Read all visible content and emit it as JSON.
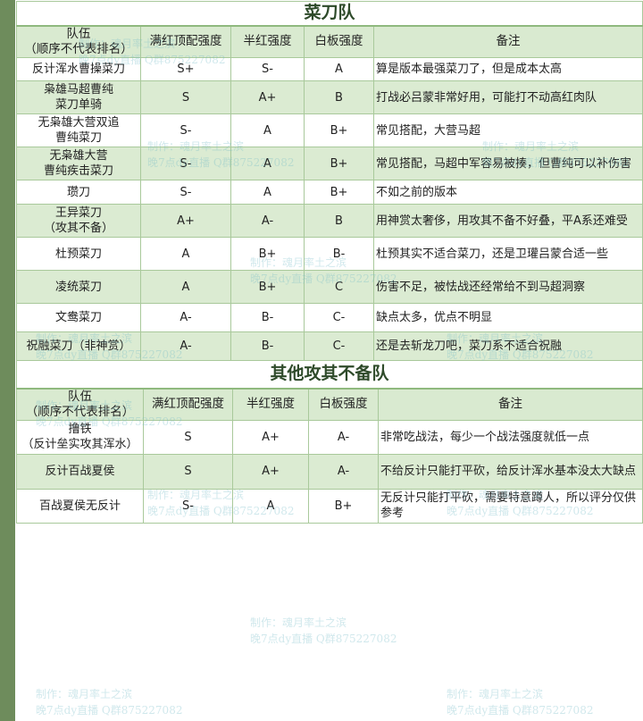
{
  "tables": [
    {
      "title": "菜刀队",
      "headers": [
        "队伍\n（顺序不代表排名）",
        "满红顶配强度",
        "半红强度",
        "白板强度",
        "备注"
      ],
      "rows": [
        [
          "反计浑水曹操菜刀",
          "S+",
          "S-",
          "A",
          "算是版本最强菜刀了，但是成本太高"
        ],
        [
          "枭雄马超曹纯\n菜刀单骑",
          "S",
          "A+",
          "B",
          "打战必吕蒙非常好用，可能打不动高红肉队"
        ],
        [
          "无枭雄大营双追\n曹纯菜刀",
          "S-",
          "A",
          "B+",
          "常见搭配，大营马超"
        ],
        [
          "无枭雄大营\n曹纯疾击菜刀",
          "S-",
          "A",
          "B+",
          "常见搭配，马超中军容易被揍，但曹纯可以补伤害"
        ],
        [
          "瓒刀",
          "S-",
          "A",
          "B+",
          "不如之前的版本"
        ],
        [
          "王异菜刀\n（攻其不备）",
          "A+",
          "A-",
          "B",
          "用神赏太奢侈，用攻其不备不好叠，平A系还难受"
        ],
        [
          "杜预菜刀",
          "A",
          "B+",
          "B-",
          "杜预其实不适合菜刀，还是卫瓘吕蒙合适一些"
        ],
        [
          "凌统菜刀",
          "A",
          "B+",
          "C",
          "伤害不足，被怯战还经常给不到马超洞察"
        ],
        [
          "文鸯菜刀",
          "A-",
          "B-",
          "C-",
          "缺点太多，优点不明显"
        ],
        [
          "祝融菜刀（非神赏）",
          "A-",
          "B-",
          "C-",
          "还是去斩龙刀吧，菜刀系不适合祝融"
        ]
      ]
    },
    {
      "title": "其他攻其不备队",
      "headers": [
        "队伍\n（顺序不代表排名）",
        "满红顶配强度",
        "半红强度",
        "白板强度",
        "备注"
      ],
      "rows": [
        [
          "撸铁\n（反计垒实攻其浑水）",
          "S",
          "A+",
          "A-",
          "非常吃战法，每少一个战法强度就低一点"
        ],
        [
          "反计百战夏侯",
          "S",
          "A+",
          "A-",
          "不给反计只能打平砍，给反计浑水基本没太大缺点"
        ],
        [
          "百战夏侯无反计",
          "S-",
          "A",
          "B+",
          "无反计只能打平砍，需要特意蹲人，所以评分仅供参考"
        ]
      ]
    }
  ],
  "watermark": {
    "line1": "制作：魂月率土之滨",
    "line2": "晚7点dy直播 Q群875227082"
  },
  "colors": {
    "strip": "#6e8c5c",
    "row_alt": "#dbebd2",
    "header": "#d9ead0",
    "border": "#a9c99b"
  }
}
